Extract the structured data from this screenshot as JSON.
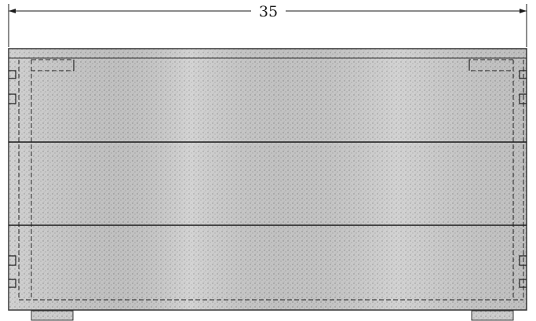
{
  "dimension": {
    "width_label": "35"
  },
  "colors": {
    "paper": "#ffffff",
    "wood_fill": "#cfcfcf",
    "wood_stroke": "#333333",
    "line": "#1a1a1a"
  }
}
